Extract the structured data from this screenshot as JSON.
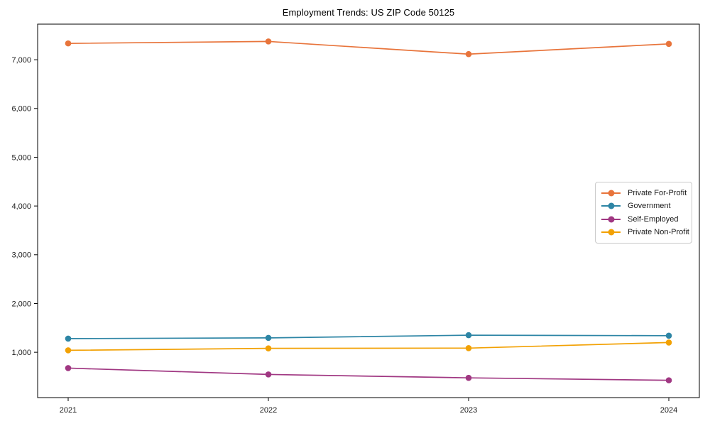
{
  "chart_data": {
    "type": "line",
    "title": "Employment Trends: US ZIP Code 50125",
    "x": [
      "2021",
      "2022",
      "2023",
      "2024"
    ],
    "series": [
      {
        "name": "Private For-Profit",
        "color": "#e8743b",
        "values": [
          7335,
          7375,
          7115,
          7325
        ]
      },
      {
        "name": "Government",
        "color": "#2d85a5",
        "values": [
          1280,
          1295,
          1350,
          1340
        ]
      },
      {
        "name": "Self-Employed",
        "color": "#a03782",
        "values": [
          675,
          545,
          475,
          425
        ]
      },
      {
        "name": "Private Non-Profit",
        "color": "#f2a104",
        "values": [
          1040,
          1080,
          1085,
          1200
        ]
      }
    ],
    "xlabel": "",
    "ylabel": "",
    "ylim": [
      70,
      7730
    ],
    "yticks": [
      1000,
      2000,
      3000,
      4000,
      5000,
      6000,
      7000
    ],
    "ytick_labels": [
      "1,000",
      "2,000",
      "3,000",
      "4,000",
      "5,000",
      "6,000",
      "7,000"
    ],
    "grid": false,
    "legend_position": "right-middle",
    "marker": "circle",
    "axis_color": "#000000",
    "text_color": "#1a1a1a",
    "background": "#ffffff"
  }
}
